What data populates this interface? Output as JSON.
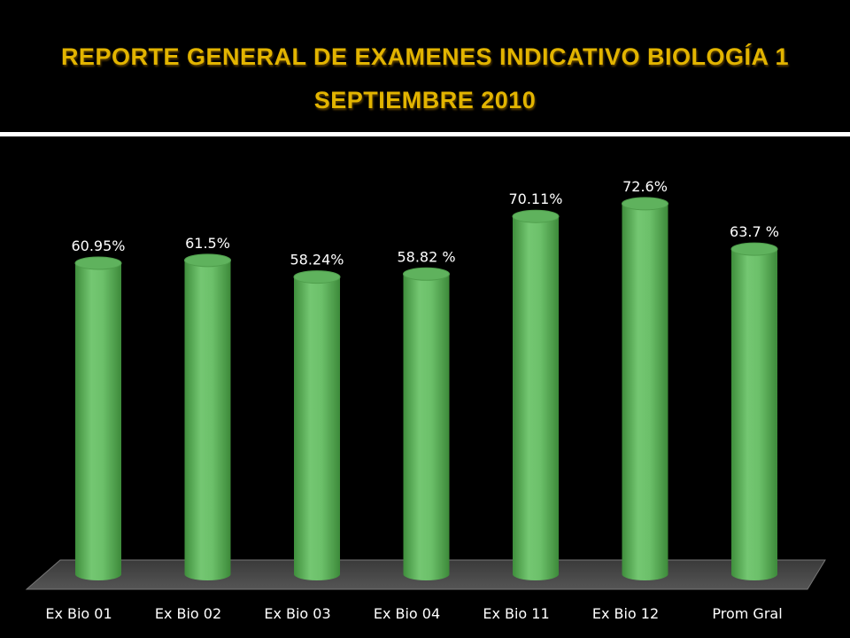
{
  "header": {
    "title_line1": "REPORTE GENERAL DE EXAMENES INDICATIVO BIOLOGÍA 1",
    "title_line2": "SEPTIEMBRE  2010"
  },
  "colors": {
    "background": "#000000",
    "title": "#e2b400",
    "bar": "#6cc06a",
    "floor": "#444444"
  },
  "chart_data": {
    "type": "bar",
    "style": "3d-cylinder",
    "grid": false,
    "legend": "none",
    "categories": [
      "Ex Bio  01",
      "Ex Bio  02",
      "Ex Bio  03",
      "Ex Bio  04",
      "Ex Bio  11",
      "Ex Bio  12",
      "Prom Gral"
    ],
    "values": [
      60.95,
      61.5,
      58.24,
      58.82,
      70.11,
      72.6,
      63.7
    ],
    "data_labels": [
      "60.95%",
      "61.5%",
      "58.24%",
      "58.82 %",
      "70.11%",
      "72.6%",
      "63.7 %"
    ],
    "ylim": [
      0,
      80
    ]
  }
}
